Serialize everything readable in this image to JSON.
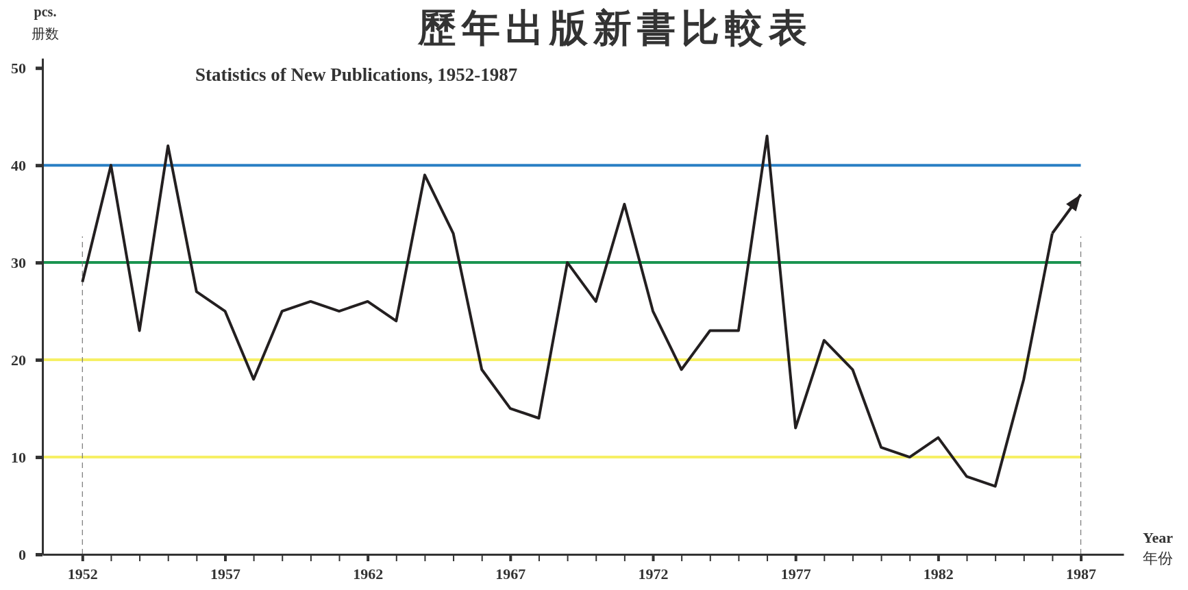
{
  "chart_data": {
    "type": "line",
    "title": "歷年出版新書比較表",
    "subtitle": "Statistics of New Publications, 1952-1987",
    "xlabel": "Year\n年份",
    "ylabel": "pcs.\n册数",
    "x": [
      1952,
      1953,
      1954,
      1955,
      1956,
      1957,
      1958,
      1959,
      1960,
      1961,
      1962,
      1963,
      1964,
      1965,
      1966,
      1967,
      1968,
      1969,
      1970,
      1971,
      1972,
      1973,
      1974,
      1975,
      1976,
      1977,
      1978,
      1979,
      1980,
      1981,
      1982,
      1983,
      1984,
      1985,
      1986,
      1987
    ],
    "series": [
      {
        "color": "#231f20",
        "values": [
          28,
          40,
          23,
          42,
          27,
          25,
          18,
          25,
          26,
          25,
          26,
          24,
          39,
          33,
          19,
          15,
          14,
          30,
          26,
          36,
          25,
          19,
          23,
          23,
          43,
          13,
          22,
          19,
          11,
          10,
          12,
          8,
          7,
          18,
          33,
          37
        ]
      }
    ],
    "xlim": [
      1950.6,
      1988.5
    ],
    "ylim": [
      0,
      51
    ],
    "xticks": [
      1952,
      {
        "value": 1953,
        "label": null
      },
      {
        "value": 1954,
        "label": null
      },
      {
        "value": 1955,
        "label": null
      },
      {
        "value": 1956,
        "label": null
      },
      1957,
      {
        "value": 1958,
        "label": null
      },
      {
        "value": 1959,
        "label": null
      },
      {
        "value": 1960,
        "label": null
      },
      {
        "value": 1961,
        "label": null
      },
      1962,
      {
        "value": 1963,
        "label": null
      },
      {
        "value": 1964,
        "label": null
      },
      {
        "value": 1965,
        "label": null
      },
      {
        "value": 1966,
        "label": null
      },
      1967,
      {
        "value": 1968,
        "label": null
      },
      {
        "value": 1969,
        "label": null
      },
      {
        "value": 1970,
        "label": null
      },
      {
        "value": 1971,
        "label": null
      },
      1972,
      {
        "value": 1973,
        "label": null
      },
      {
        "value": 1974,
        "label": null
      },
      {
        "value": 1975,
        "label": null
      },
      {
        "value": 1976,
        "label": null
      },
      1977,
      {
        "value": 1978,
        "label": null
      },
      {
        "value": 1979,
        "label": null
      },
      {
        "value": 1980,
        "label": null
      },
      {
        "value": 1981,
        "label": null
      },
      1982,
      {
        "value": 1983,
        "label": null
      },
      {
        "value": 1984,
        "label": null
      },
      {
        "value": 1985,
        "label": null
      },
      {
        "value": 1986,
        "label": null
      },
      1987
    ],
    "yticks": [
      0,
      10,
      20,
      30,
      40,
      50
    ],
    "ref_lines": [
      {
        "axis": "y",
        "value": 40,
        "color": "#2a7fc4"
      },
      {
        "axis": "y",
        "value": 30,
        "color": "#1a9450"
      },
      {
        "axis": "y",
        "value": 20,
        "color": "#f6f065"
      },
      {
        "axis": "y",
        "value": 10,
        "color": "#f6f065"
      },
      {
        "axis": "x",
        "value": 1952,
        "color": "#777777",
        "line_style": "dashed"
      },
      {
        "axis": "x",
        "value": 1987,
        "color": "#777777",
        "line_style": "dashed"
      }
    ],
    "marker": "none",
    "line_style": "solid",
    "grid": false
  }
}
